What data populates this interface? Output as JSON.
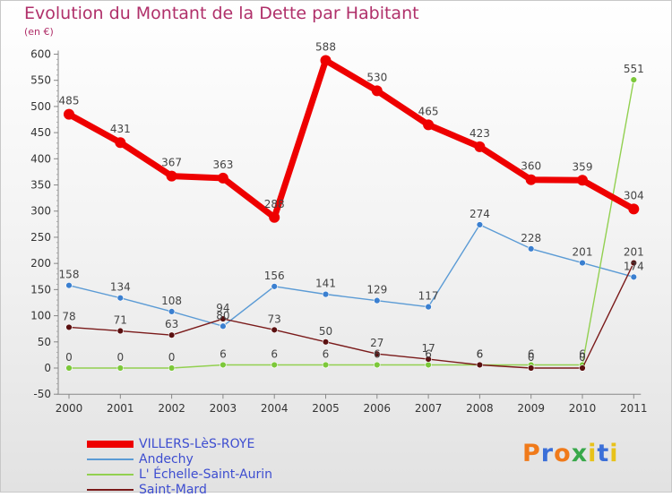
{
  "title": "Evolution du Montant de la Dette par Habitant",
  "unit_label": "(en €)",
  "logo": {
    "text": "Proxiti",
    "letters": [
      "P",
      "r",
      "o",
      "x",
      "i",
      "t",
      "i"
    ],
    "colors": [
      "#f07a1a",
      "#3b6fd8",
      "#f07a1a",
      "#38a84a",
      "#e8c21a",
      "#3b6fd8",
      "#e8c21a"
    ]
  },
  "chart_data": {
    "type": "line",
    "title": "Evolution du Montant de la Dette par Habitant",
    "ylabel": "(en €)",
    "xlabel": "",
    "categories": [
      "2000",
      "2001",
      "2002",
      "2003",
      "2004",
      "2005",
      "2006",
      "2007",
      "2008",
      "2009",
      "2010",
      "2011"
    ],
    "ylim": [
      -50,
      600
    ],
    "yticks": [
      -50,
      0,
      50,
      100,
      150,
      200,
      250,
      300,
      350,
      400,
      450,
      500,
      550,
      600
    ],
    "grid": false,
    "legend_position": "bottom-left",
    "series": [
      {
        "name": "VILLERS-LèS-ROYE",
        "color": "#ee0000",
        "marker": "#ee0000",
        "width": 7,
        "r": 6,
        "values": [
          485,
          431,
          367,
          363,
          288,
          588,
          530,
          465,
          423,
          360,
          359,
          304
        ]
      },
      {
        "name": "Andechy",
        "color": "#5b9bd5",
        "marker": "#3a7fd0",
        "width": 1.4,
        "r": 3.4,
        "values": [
          158,
          134,
          108,
          80,
          156,
          141,
          129,
          117,
          274,
          228,
          201,
          174
        ]
      },
      {
        "name": "L' Échelle-Saint-Aurin",
        "color": "#92d050",
        "marker": "#7cc83a",
        "width": 1.4,
        "r": 3.4,
        "values": [
          0,
          0,
          0,
          6,
          6,
          6,
          6,
          6,
          6,
          6,
          6,
          551
        ]
      },
      {
        "name": "Saint-Mard",
        "color": "#7a1a1a",
        "marker": "#5a1010",
        "width": 1.4,
        "r": 3.4,
        "values": [
          78,
          71,
          63,
          94,
          73,
          50,
          27,
          17,
          6,
          0,
          0,
          201
        ]
      }
    ]
  }
}
